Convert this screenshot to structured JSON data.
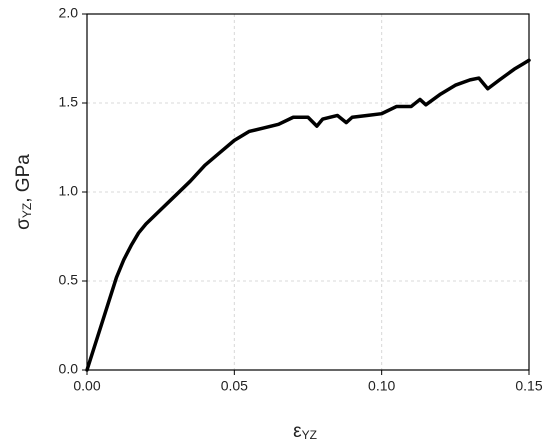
{
  "chart_data": {
    "type": "line",
    "xlabel": {
      "symbol": "ε",
      "subscript": "YZ"
    },
    "ylabel": {
      "symbol": "σ",
      "subscript": "YZ",
      "rest": ", GPa"
    },
    "x": [
      0,
      0.0025,
      0.005,
      0.0075,
      0.01,
      0.0125,
      0.015,
      0.0175,
      0.02,
      0.025,
      0.03,
      0.035,
      0.04,
      0.045,
      0.05,
      0.055,
      0.06,
      0.065,
      0.07,
      0.075,
      0.078,
      0.08,
      0.085,
      0.088,
      0.09,
      0.095,
      0.1,
      0.105,
      0.11,
      0.113,
      0.115,
      0.12,
      0.125,
      0.13,
      0.133,
      0.136,
      0.14,
      0.145,
      0.148,
      0.15
    ],
    "series": [
      {
        "name": "σYZ",
        "color": "#000000",
        "values": [
          0,
          0.13,
          0.26,
          0.39,
          0.52,
          0.62,
          0.7,
          0.77,
          0.82,
          0.9,
          0.98,
          1.06,
          1.15,
          1.22,
          1.29,
          1.34,
          1.36,
          1.38,
          1.42,
          1.42,
          1.37,
          1.41,
          1.43,
          1.39,
          1.42,
          1.43,
          1.44,
          1.48,
          1.48,
          1.52,
          1.49,
          1.55,
          1.6,
          1.63,
          1.64,
          1.58,
          1.63,
          1.69,
          1.72,
          1.74
        ]
      }
    ],
    "xlim": [
      0,
      0.15
    ],
    "ylim": [
      0,
      2.0
    ],
    "xticks": [
      {
        "value": 0,
        "label": "0.00"
      },
      {
        "value": 0.05,
        "label": "0.05"
      },
      {
        "value": 0.1,
        "label": "0.10"
      },
      {
        "value": 0.15,
        "label": "0.15"
      }
    ],
    "yticks": [
      {
        "value": 0,
        "label": "0.0"
      },
      {
        "value": 0.5,
        "label": "0.5"
      },
      {
        "value": 1.0,
        "label": "1.0"
      },
      {
        "value": 1.5,
        "label": "1.5"
      },
      {
        "value": 2.0,
        "label": "2.0"
      }
    ],
    "grid": true
  }
}
